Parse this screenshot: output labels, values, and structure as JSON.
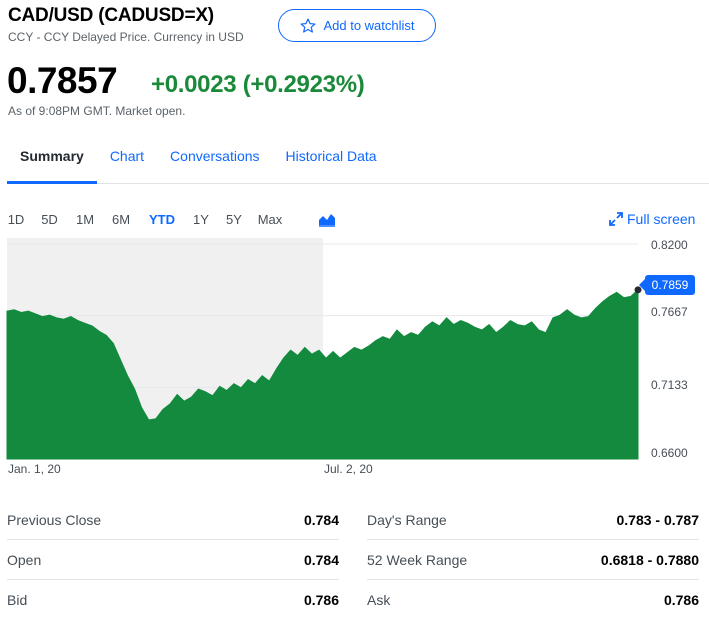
{
  "header": {
    "title": "CAD/USD (CADUSD=X)",
    "subtitle": "CCY - CCY Delayed Price. Currency in USD",
    "watchlist_label": "Add to watchlist"
  },
  "quote": {
    "price": "0.7857",
    "change": "+0.0023 (+0.2923%)",
    "as_of": "As of 9:08PM GMT. Market open."
  },
  "tabs": [
    "Summary",
    "Chart",
    "Conversations",
    "Historical Data"
  ],
  "ranges": [
    "1D",
    "5D",
    "1M",
    "6M",
    "YTD",
    "1Y",
    "5Y",
    "Max"
  ],
  "active_range": "YTD",
  "fullscreen_label": "Full screen",
  "colors": {
    "accent": "#0f69ff",
    "positive": "#1a8a3a",
    "area": "#138a3e"
  },
  "chart_data": {
    "type": "area",
    "x_labels": [
      "Jan. 1, 20",
      "Jul. 2, 20"
    ],
    "y_ticks": [
      "0.8200",
      "0.7667",
      "0.7133",
      "0.6600"
    ],
    "ylim": [
      0.66,
      0.82
    ],
    "current_label": "0.7859",
    "current_value": 0.7859,
    "series": [
      {
        "values": [
          0.77,
          0.771,
          0.769,
          0.77,
          0.768,
          0.766,
          0.767,
          0.765,
          0.764,
          0.766,
          0.763,
          0.761,
          0.759,
          0.755,
          0.752,
          0.746,
          0.734,
          0.722,
          0.712,
          0.698,
          0.689,
          0.69,
          0.697,
          0.701,
          0.708,
          0.703,
          0.706,
          0.712,
          0.71,
          0.707,
          0.714,
          0.711,
          0.716,
          0.713,
          0.719,
          0.716,
          0.722,
          0.718,
          0.727,
          0.735,
          0.741,
          0.737,
          0.743,
          0.738,
          0.741,
          0.735,
          0.74,
          0.735,
          0.739,
          0.743,
          0.741,
          0.744,
          0.748,
          0.751,
          0.749,
          0.756,
          0.751,
          0.754,
          0.752,
          0.758,
          0.762,
          0.759,
          0.765,
          0.76,
          0.763,
          0.761,
          0.758,
          0.756,
          0.76,
          0.754,
          0.758,
          0.763,
          0.76,
          0.759,
          0.762,
          0.756,
          0.754,
          0.765,
          0.767,
          0.771,
          0.767,
          0.765,
          0.766,
          0.772,
          0.777,
          0.781,
          0.784,
          0.78,
          0.781,
          0.786
        ]
      }
    ]
  },
  "stats_left": [
    {
      "label": "Previous Close",
      "value": "0.784"
    },
    {
      "label": "Open",
      "value": "0.784"
    },
    {
      "label": "Bid",
      "value": "0.786"
    }
  ],
  "stats_right": [
    {
      "label": "Day's Range",
      "value": "0.783 - 0.787"
    },
    {
      "label": "52 Week Range",
      "value": "0.6818 - 0.7880"
    },
    {
      "label": "Ask",
      "value": "0.786"
    }
  ]
}
